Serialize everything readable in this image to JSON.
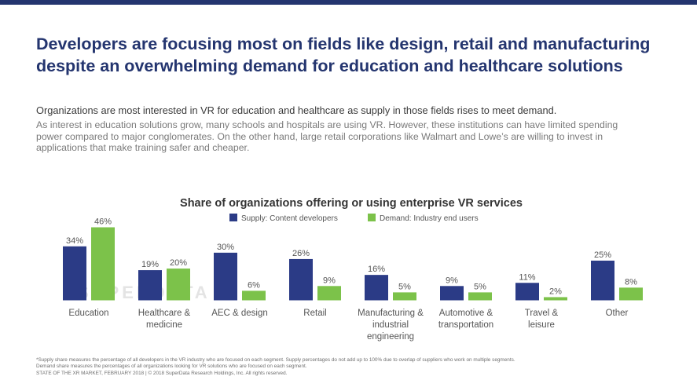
{
  "headline": {
    "line1": "Developers are focusing most on fields like design, retail and manufacturing",
    "line2": "despite an overwhelming demand for education and healthcare solutions"
  },
  "lead": "Organizations are most interested in VR for education and healthcare as supply in those fields rises to meet demand.",
  "body": {
    "line1": "As interest in education solutions grow, many schools and hospitals are using VR. However, these institutions can have limited spending",
    "line2": "power compared to major conglomerates. On the other hand, large retail corporations like Walmart and Lowe’s are willing to invest in",
    "line3": "applications that make training safer and cheaper."
  },
  "watermark": "SUPERDATA",
  "colors": {
    "accent": "#24356f",
    "supply": "#2b3b86",
    "demand": "#7cc24a",
    "label": "#555555"
  },
  "chart_data": {
    "type": "bar",
    "title": "Share of organizations offering or using enterprise VR services",
    "categories": [
      [
        "Education"
      ],
      [
        "Healthcare &",
        "medicine"
      ],
      [
        "AEC & design"
      ],
      [
        "Retail"
      ],
      [
        "Manufacturing &",
        "industrial",
        "engineering"
      ],
      [
        "Automotive &",
        "transportation"
      ],
      [
        "Travel &",
        "leisure"
      ],
      [
        "Other"
      ]
    ],
    "series": [
      {
        "name": "Supply: Content developers",
        "values": [
          34,
          19,
          30,
          26,
          16,
          9,
          11,
          25
        ]
      },
      {
        "name": "Demand: Industry end users",
        "values": [
          46,
          20,
          6,
          9,
          5,
          5,
          2,
          8
        ]
      }
    ],
    "value_suffix": "%",
    "legend": "top",
    "ylim": [
      0,
      46
    ],
    "grid": false
  },
  "footnotes": {
    "line1": "*Supply share measures the percentage of all developers in the VR industry who are focused on each segment. Supply percentages do not add up to 100% due to overlap of suppliers who work on multiple segments.",
    "line2": "Demand share measures the percentages of all organizations looking for VR solutions who are focused on each segment.",
    "line3": "STATE OF THE XR MARKET, FEBRUARY 2018  |  © 2018 SuperData Research Holdings, Inc. All rights reserved."
  }
}
